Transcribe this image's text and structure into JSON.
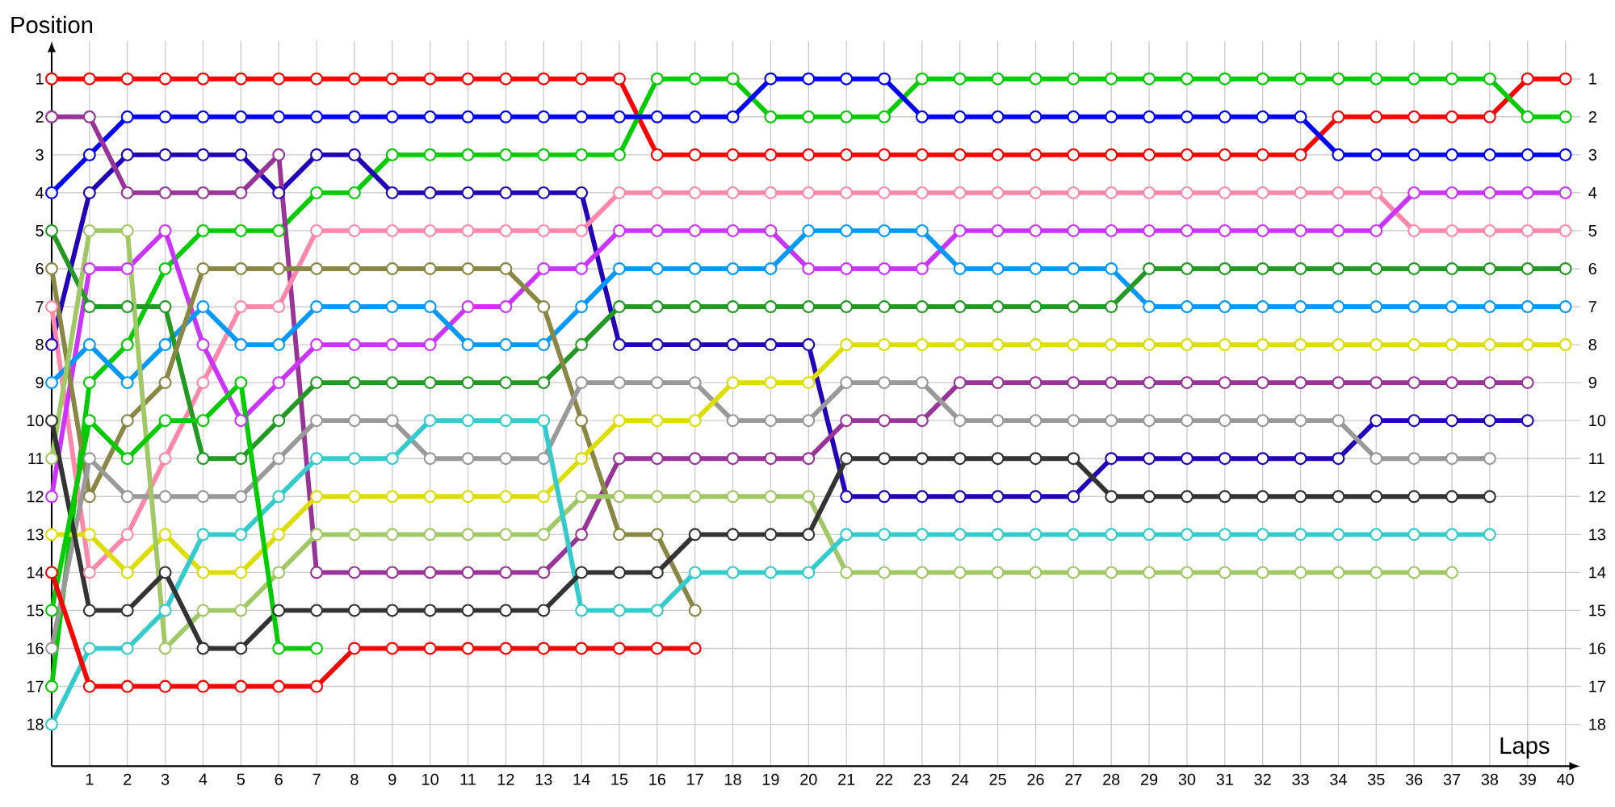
{
  "chart_data": {
    "type": "line",
    "xlabel": "Laps",
    "ylabel": "Position",
    "x": [
      0,
      1,
      2,
      3,
      4,
      5,
      6,
      7,
      8,
      9,
      10,
      11,
      12,
      13,
      14,
      15,
      16,
      17,
      18,
      19,
      20,
      21,
      22,
      23,
      24,
      25,
      26,
      27,
      28,
      29,
      30,
      31,
      32,
      33,
      34,
      35,
      36,
      37,
      38,
      39,
      40
    ],
    "xlim": [
      0,
      40.4
    ],
    "ylim": [
      19.1,
      0
    ],
    "y2lim": [
      19.1,
      0
    ],
    "xticks": [
      1,
      2,
      3,
      4,
      5,
      6,
      7,
      8,
      9,
      10,
      11,
      12,
      13,
      14,
      15,
      16,
      17,
      18,
      19,
      20,
      21,
      22,
      23,
      24,
      25,
      26,
      27,
      28,
      29,
      30,
      31,
      32,
      33,
      34,
      35,
      36,
      37,
      38,
      39,
      40
    ],
    "yticks": [
      1,
      2,
      3,
      4,
      5,
      6,
      7,
      8,
      9,
      10,
      11,
      12,
      13,
      14,
      15,
      16,
      17,
      18
    ],
    "y2ticks": [
      1,
      2,
      3,
      4,
      5,
      6,
      7,
      8,
      9,
      10,
      11,
      12,
      13,
      14,
      15,
      16,
      17,
      18
    ],
    "grid": true,
    "marker": "circle",
    "line_style": "solid",
    "series": [
      {
        "color": "#ff0000",
        "values": [
          1,
          1,
          1,
          1,
          1,
          1,
          1,
          1,
          1,
          1,
          1,
          1,
          1,
          1,
          1,
          1,
          3,
          3,
          3,
          3,
          3,
          3,
          3,
          3,
          3,
          3,
          3,
          3,
          3,
          3,
          3,
          3,
          3,
          3,
          2,
          2,
          2,
          2,
          2,
          1,
          1
        ]
      },
      {
        "color": "#00cc00",
        "values": [
          17,
          9,
          8,
          6,
          5,
          5,
          5,
          4,
          4,
          3,
          3,
          3,
          3,
          3,
          3,
          3,
          1,
          1,
          1,
          2,
          2,
          2,
          2,
          1,
          1,
          1,
          1,
          1,
          1,
          1,
          1,
          1,
          1,
          1,
          1,
          1,
          1,
          1,
          1,
          2,
          2
        ]
      },
      {
        "color": "#0000ff",
        "values": [
          4,
          3,
          2,
          2,
          2,
          2,
          2,
          2,
          2,
          2,
          2,
          2,
          2,
          2,
          2,
          2,
          2,
          2,
          2,
          1,
          1,
          1,
          1,
          2,
          2,
          2,
          2,
          2,
          2,
          2,
          2,
          2,
          2,
          2,
          3,
          3,
          3,
          3,
          3,
          3,
          3
        ]
      },
      {
        "color": "#2200bb",
        "values": [
          8,
          4,
          3,
          3,
          3,
          3,
          4,
          3,
          3,
          4,
          4,
          4,
          4,
          4,
          4,
          8,
          8,
          8,
          8,
          8,
          8,
          12,
          12,
          12,
          12,
          12,
          12,
          12,
          11,
          11,
          11,
          11,
          11,
          11,
          11,
          10,
          10,
          10,
          10,
          10,
          null
        ]
      },
      {
        "color": "#993399",
        "values": [
          2,
          2,
          4,
          4,
          4,
          4,
          3,
          14,
          14,
          14,
          14,
          14,
          14,
          14,
          13,
          11,
          11,
          11,
          11,
          11,
          11,
          10,
          10,
          10,
          9,
          9,
          9,
          9,
          9,
          9,
          9,
          9,
          9,
          9,
          9,
          9,
          9,
          9,
          9,
          9,
          null
        ]
      },
      {
        "color": "#ff88aa",
        "values": [
          7,
          14,
          13,
          11,
          9,
          7,
          7,
          5,
          5,
          5,
          5,
          5,
          5,
          5,
          5,
          4,
          4,
          4,
          4,
          4,
          4,
          4,
          4,
          4,
          4,
          4,
          4,
          4,
          4,
          4,
          4,
          4,
          4,
          4,
          4,
          4,
          5,
          5,
          5,
          5,
          5
        ]
      },
      {
        "color": "#cc33ff",
        "values": [
          12,
          6,
          6,
          5,
          8,
          10,
          9,
          8,
          8,
          8,
          8,
          7,
          7,
          6,
          6,
          5,
          5,
          5,
          5,
          5,
          6,
          6,
          6,
          6,
          5,
          5,
          5,
          5,
          5,
          5,
          5,
          5,
          5,
          5,
          5,
          5,
          4,
          4,
          4,
          4,
          4
        ]
      },
      {
        "color": "#0099ff",
        "values": [
          9,
          8,
          9,
          8,
          7,
          8,
          8,
          7,
          7,
          7,
          7,
          8,
          8,
          8,
          7,
          6,
          6,
          6,
          6,
          6,
          5,
          5,
          5,
          5,
          6,
          6,
          6,
          6,
          6,
          7,
          7,
          7,
          7,
          7,
          7,
          7,
          7,
          7,
          7,
          7,
          7
        ]
      },
      {
        "color": "#229922",
        "values": [
          5,
          7,
          7,
          7,
          11,
          11,
          10,
          9,
          9,
          9,
          9,
          9,
          9,
          9,
          8,
          7,
          7,
          7,
          7,
          7,
          7,
          7,
          7,
          7,
          7,
          7,
          7,
          7,
          7,
          6,
          6,
          6,
          6,
          6,
          6,
          6,
          6,
          6,
          6,
          6,
          6
        ]
      },
      {
        "color": "#888844",
        "values": [
          6,
          12,
          10,
          9,
          6,
          6,
          6,
          6,
          6,
          6,
          6,
          6,
          6,
          7,
          10,
          13,
          13,
          15,
          null,
          null,
          null,
          null,
          null,
          null,
          null,
          null,
          null,
          null,
          null,
          null,
          null,
          null,
          null,
          null,
          null,
          null,
          null,
          null,
          null,
          null,
          null
        ]
      },
      {
        "color": "#999999",
        "values": [
          16,
          11,
          12,
          12,
          12,
          12,
          11,
          10,
          10,
          10,
          11,
          11,
          11,
          11,
          9,
          9,
          9,
          9,
          10,
          10,
          10,
          9,
          9,
          9,
          10,
          10,
          10,
          10,
          10,
          10,
          10,
          10,
          10,
          10,
          10,
          11,
          11,
          11,
          11,
          null,
          null
        ]
      },
      {
        "color": "#dddd00",
        "values": [
          13,
          13,
          14,
          13,
          14,
          14,
          13,
          12,
          12,
          12,
          12,
          12,
          12,
          12,
          11,
          10,
          10,
          10,
          9,
          9,
          9,
          8,
          8,
          8,
          8,
          8,
          8,
          8,
          8,
          8,
          8,
          8,
          8,
          8,
          8,
          8,
          8,
          8,
          8,
          8,
          8
        ]
      },
      {
        "color": "#a0c864",
        "values": [
          11,
          5,
          5,
          16,
          15,
          15,
          14,
          13,
          13,
          13,
          13,
          13,
          13,
          13,
          12,
          12,
          12,
          12,
          12,
          12,
          12,
          14,
          14,
          14,
          14,
          14,
          14,
          14,
          14,
          14,
          14,
          14,
          14,
          14,
          14,
          14,
          14,
          14,
          null,
          null,
          null
        ]
      },
      {
        "color": "#33cccc",
        "values": [
          18,
          16,
          16,
          15,
          13,
          13,
          12,
          11,
          11,
          11,
          10,
          10,
          10,
          10,
          15,
          15,
          15,
          14,
          14,
          14,
          14,
          13,
          13,
          13,
          13,
          13,
          13,
          13,
          13,
          13,
          13,
          13,
          13,
          13,
          13,
          13,
          13,
          13,
          13,
          null,
          null
        ]
      },
      {
        "color": "#333333",
        "values": [
          10,
          15,
          15,
          14,
          16,
          16,
          15,
          15,
          15,
          15,
          15,
          15,
          15,
          15,
          14,
          14,
          14,
          13,
          13,
          13,
          13,
          11,
          11,
          11,
          11,
          11,
          11,
          11,
          12,
          12,
          12,
          12,
          12,
          12,
          12,
          12,
          12,
          12,
          12,
          null,
          null
        ]
      },
      {
        "color": "#00cc00",
        "values": [
          15,
          10,
          11,
          10,
          10,
          9,
          16,
          16,
          null,
          null,
          null,
          null,
          null,
          null,
          null,
          null,
          null,
          null,
          null,
          null,
          null,
          null,
          null,
          null,
          null,
          null,
          null,
          null,
          null,
          null,
          null,
          null,
          null,
          null,
          null,
          null,
          null,
          null,
          null,
          null,
          null
        ]
      },
      {
        "color": "#ff0000",
        "values": [
          14,
          17,
          17,
          17,
          17,
          17,
          17,
          17,
          16,
          16,
          16,
          16,
          16,
          16,
          16,
          16,
          16,
          16,
          null,
          null,
          null,
          null,
          null,
          null,
          null,
          null,
          null,
          null,
          null,
          null,
          null,
          null,
          null,
          null,
          null,
          null,
          null,
          null,
          null,
          null,
          null
        ]
      }
    ]
  }
}
